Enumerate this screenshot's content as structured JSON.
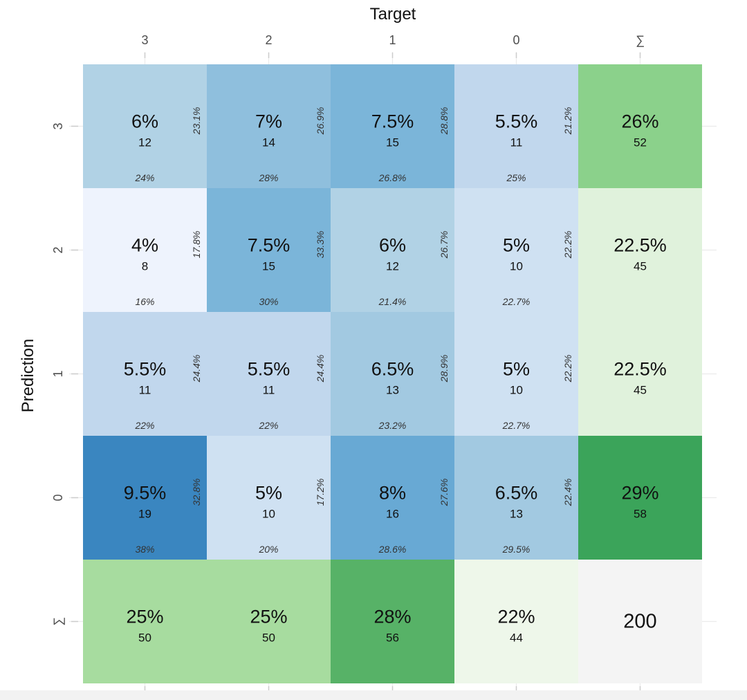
{
  "chart_data": {
    "type": "heatmap",
    "subtype": "confusion-matrix",
    "xlabel": "Target",
    "ylabel": "Prediction",
    "x_categories": [
      "3",
      "2",
      "1",
      "0",
      "∑"
    ],
    "y_categories": [
      "3",
      "2",
      "1",
      "0",
      "∑"
    ],
    "colors": {
      "cell_scale": [
        "#eef3fd",
        "#3a86c0"
      ],
      "sum_scale": [
        "#eef7ea",
        "#3ba45a"
      ],
      "total_bg": "#f4f4f4",
      "grid": "#ebebeb",
      "text": "#111111",
      "secondary_text": "#333333"
    },
    "cells": [
      {
        "pred": "3",
        "target": "3",
        "pct": "6%",
        "count": "12",
        "row_pct": "23.1%",
        "col_pct": "24%",
        "color": "#b1d2e5"
      },
      {
        "pred": "3",
        "target": "2",
        "pct": "7%",
        "count": "14",
        "row_pct": "26.9%",
        "col_pct": "28%",
        "color": "#8fbfdd"
      },
      {
        "pred": "3",
        "target": "1",
        "pct": "7.5%",
        "count": "15",
        "row_pct": "28.8%",
        "col_pct": "26.8%",
        "color": "#7bb5d9"
      },
      {
        "pred": "3",
        "target": "0",
        "pct": "5.5%",
        "count": "11",
        "row_pct": "21.2%",
        "col_pct": "25%",
        "color": "#c1d7ed"
      },
      {
        "pred": "2",
        "target": "3",
        "pct": "4%",
        "count": "8",
        "row_pct": "17.8%",
        "col_pct": "16%",
        "color": "#eef3fd"
      },
      {
        "pred": "2",
        "target": "2",
        "pct": "7.5%",
        "count": "15",
        "row_pct": "33.3%",
        "col_pct": "30%",
        "color": "#7bb5d9"
      },
      {
        "pred": "2",
        "target": "1",
        "pct": "6%",
        "count": "12",
        "row_pct": "26.7%",
        "col_pct": "21.4%",
        "color": "#b1d2e5"
      },
      {
        "pred": "2",
        "target": "0",
        "pct": "5%",
        "count": "10",
        "row_pct": "22.2%",
        "col_pct": "22.7%",
        "color": "#cfe1f2"
      },
      {
        "pred": "1",
        "target": "3",
        "pct": "5.5%",
        "count": "11",
        "row_pct": "24.4%",
        "col_pct": "22%",
        "color": "#c1d7ed"
      },
      {
        "pred": "1",
        "target": "2",
        "pct": "5.5%",
        "count": "11",
        "row_pct": "24.4%",
        "col_pct": "22%",
        "color": "#c1d7ed"
      },
      {
        "pred": "1",
        "target": "1",
        "pct": "6.5%",
        "count": "13",
        "row_pct": "28.9%",
        "col_pct": "23.2%",
        "color": "#a2c9e1"
      },
      {
        "pred": "1",
        "target": "0",
        "pct": "5%",
        "count": "10",
        "row_pct": "22.2%",
        "col_pct": "22.7%",
        "color": "#cfe1f2"
      },
      {
        "pred": "0",
        "target": "3",
        "pct": "9.5%",
        "count": "19",
        "row_pct": "32.8%",
        "col_pct": "38%",
        "color": "#3a86c0"
      },
      {
        "pred": "0",
        "target": "2",
        "pct": "5%",
        "count": "10",
        "row_pct": "17.2%",
        "col_pct": "20%",
        "color": "#cfe1f2"
      },
      {
        "pred": "0",
        "target": "1",
        "pct": "8%",
        "count": "16",
        "row_pct": "27.6%",
        "col_pct": "28.6%",
        "color": "#68a9d4"
      },
      {
        "pred": "0",
        "target": "0",
        "pct": "6.5%",
        "count": "13",
        "row_pct": "22.4%",
        "col_pct": "29.5%",
        "color": "#a2c9e1"
      }
    ],
    "row_sums": [
      {
        "pred": "3",
        "pct": "26%",
        "count": "52",
        "color": "#8bd18b"
      },
      {
        "pred": "2",
        "pct": "22.5%",
        "count": "45",
        "color": "#e0f2dc"
      },
      {
        "pred": "1",
        "pct": "22.5%",
        "count": "45",
        "color": "#e0f2dc"
      },
      {
        "pred": "0",
        "pct": "29%",
        "count": "58",
        "color": "#3ba45a"
      }
    ],
    "col_sums": [
      {
        "target": "3",
        "pct": "25%",
        "count": "50",
        "color": "#a7dc9f"
      },
      {
        "target": "2",
        "pct": "25%",
        "count": "50",
        "color": "#a7dc9f"
      },
      {
        "target": "1",
        "pct": "28%",
        "count": "56",
        "color": "#57b267"
      },
      {
        "target": "0",
        "pct": "22%",
        "count": "44",
        "color": "#eef7ea"
      }
    ],
    "total": {
      "count": "200",
      "color": "#f4f4f4"
    }
  }
}
